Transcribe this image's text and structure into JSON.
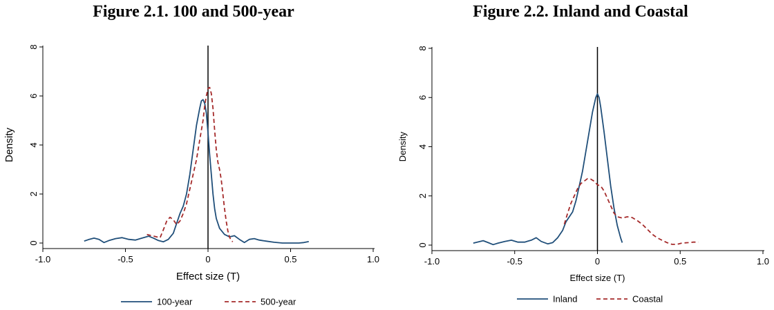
{
  "titles": {
    "left": "Figure 2.1. 100 and 500-year",
    "right": "Figure 2.2. Inland and Coastal"
  },
  "colors": {
    "solid_series": "#1f4e79",
    "dashed_series": "#a52a2a",
    "axis": "#000000",
    "zero_line": "#000000"
  },
  "chart_data": [
    {
      "type": "line",
      "title": "Figure 2.1. 100 and 500-year",
      "xlabel": "Effect size (T)",
      "ylabel": "Density",
      "xlim": [
        -1.0,
        1.0
      ],
      "ylim": [
        0,
        8
      ],
      "xticks": [
        -1.0,
        -0.5,
        0,
        0.5,
        1.0
      ],
      "xtick_labels": [
        "-1.0",
        "-0.5",
        "0",
        "0.5",
        "1.0"
      ],
      "yticks": [
        0,
        2,
        4,
        6,
        8
      ],
      "ytick_labels": [
        "0",
        "2",
        "4",
        "6",
        "8"
      ],
      "reference_line_x": 0,
      "legend_position": "bottom",
      "series": [
        {
          "name": "100-year",
          "style": "solid",
          "color": "#1f4e79",
          "points": [
            [
              -0.75,
              0.08
            ],
            [
              -0.72,
              0.15
            ],
            [
              -0.69,
              0.2
            ],
            [
              -0.66,
              0.15
            ],
            [
              -0.63,
              0.02
            ],
            [
              -0.6,
              0.1
            ],
            [
              -0.56,
              0.18
            ],
            [
              -0.52,
              0.22
            ],
            [
              -0.48,
              0.15
            ],
            [
              -0.44,
              0.12
            ],
            [
              -0.4,
              0.2
            ],
            [
              -0.36,
              0.28
            ],
            [
              -0.33,
              0.2
            ],
            [
              -0.3,
              0.1
            ],
            [
              -0.27,
              0.05
            ],
            [
              -0.24,
              0.15
            ],
            [
              -0.21,
              0.4
            ],
            [
              -0.19,
              0.8
            ],
            [
              -0.17,
              1.2
            ],
            [
              -0.15,
              1.5
            ],
            [
              -0.13,
              2.0
            ],
            [
              -0.11,
              2.8
            ],
            [
              -0.09,
              3.8
            ],
            [
              -0.07,
              4.8
            ],
            [
              -0.05,
              5.5
            ],
            [
              -0.04,
              5.8
            ],
            [
              -0.03,
              5.85
            ],
            [
              -0.02,
              5.7
            ],
            [
              -0.01,
              5.3
            ],
            [
              0.0,
              4.5
            ],
            [
              0.01,
              3.6
            ],
            [
              0.02,
              2.8
            ],
            [
              0.03,
              2.0
            ],
            [
              0.04,
              1.4
            ],
            [
              0.05,
              1.0
            ],
            [
              0.07,
              0.6
            ],
            [
              0.1,
              0.35
            ],
            [
              0.13,
              0.25
            ],
            [
              0.16,
              0.3
            ],
            [
              0.19,
              0.15
            ],
            [
              0.22,
              0.02
            ],
            [
              0.25,
              0.15
            ],
            [
              0.28,
              0.18
            ],
            [
              0.31,
              0.12
            ],
            [
              0.35,
              0.08
            ],
            [
              0.4,
              0.03
            ],
            [
              0.45,
              0.0
            ],
            [
              0.5,
              0.0
            ],
            [
              0.55,
              0.0
            ],
            [
              0.58,
              0.02
            ],
            [
              0.61,
              0.06
            ]
          ]
        },
        {
          "name": "500-year",
          "style": "dashed",
          "color": "#a52a2a",
          "points": [
            [
              -0.37,
              0.35
            ],
            [
              -0.34,
              0.3
            ],
            [
              -0.31,
              0.25
            ],
            [
              -0.29,
              0.22
            ],
            [
              -0.27,
              0.55
            ],
            [
              -0.25,
              0.9
            ],
            [
              -0.23,
              1.05
            ],
            [
              -0.21,
              0.95
            ],
            [
              -0.19,
              0.75
            ],
            [
              -0.17,
              0.9
            ],
            [
              -0.15,
              1.2
            ],
            [
              -0.13,
              1.6
            ],
            [
              -0.11,
              2.2
            ],
            [
              -0.09,
              2.8
            ],
            [
              -0.07,
              3.4
            ],
            [
              -0.05,
              4.2
            ],
            [
              -0.03,
              5.0
            ],
            [
              -0.02,
              5.6
            ],
            [
              -0.01,
              6.0
            ],
            [
              0.0,
              6.3
            ],
            [
              0.01,
              6.35
            ],
            [
              0.02,
              6.1
            ],
            [
              0.03,
              5.5
            ],
            [
              0.04,
              4.6
            ],
            [
              0.05,
              3.8
            ],
            [
              0.06,
              3.3
            ],
            [
              0.07,
              3.0
            ],
            [
              0.08,
              2.6
            ],
            [
              0.09,
              2.0
            ],
            [
              0.1,
              1.4
            ],
            [
              0.11,
              0.9
            ],
            [
              0.12,
              0.5
            ],
            [
              0.13,
              0.25
            ],
            [
              0.14,
              0.1
            ],
            [
              0.15,
              0.05
            ]
          ]
        }
      ]
    },
    {
      "type": "line",
      "title": "Figure 2.2. Inland and Coastal",
      "xlabel": "Effect size (T)",
      "ylabel": "Density",
      "xlim": [
        -1.0,
        1.0
      ],
      "ylim": [
        0,
        8
      ],
      "xticks": [
        -1.0,
        -0.5,
        0,
        0.5,
        1.0
      ],
      "xtick_labels": [
        "-1.0",
        "-0.5",
        "0",
        "0.5",
        "1.0"
      ],
      "yticks": [
        0,
        2,
        4,
        6,
        8
      ],
      "ytick_labels": [
        "0",
        "2",
        "4",
        "6",
        "8"
      ],
      "reference_line_x": 0,
      "legend_position": "bottom",
      "series": [
        {
          "name": "Inland",
          "style": "solid",
          "color": "#1f4e79",
          "points": [
            [
              -0.75,
              0.08
            ],
            [
              -0.72,
              0.13
            ],
            [
              -0.69,
              0.18
            ],
            [
              -0.66,
              0.1
            ],
            [
              -0.63,
              0.02
            ],
            [
              -0.6,
              0.08
            ],
            [
              -0.56,
              0.15
            ],
            [
              -0.52,
              0.2
            ],
            [
              -0.48,
              0.12
            ],
            [
              -0.44,
              0.12
            ],
            [
              -0.4,
              0.2
            ],
            [
              -0.37,
              0.3
            ],
            [
              -0.34,
              0.15
            ],
            [
              -0.3,
              0.05
            ],
            [
              -0.27,
              0.1
            ],
            [
              -0.24,
              0.3
            ],
            [
              -0.21,
              0.6
            ],
            [
              -0.19,
              0.95
            ],
            [
              -0.17,
              1.15
            ],
            [
              -0.15,
              1.35
            ],
            [
              -0.13,
              1.8
            ],
            [
              -0.11,
              2.4
            ],
            [
              -0.09,
              3.0
            ],
            [
              -0.07,
              3.8
            ],
            [
              -0.05,
              4.6
            ],
            [
              -0.03,
              5.4
            ],
            [
              -0.01,
              6.0
            ],
            [
              0.0,
              6.15
            ],
            [
              0.01,
              6.0
            ],
            [
              0.02,
              5.6
            ],
            [
              0.04,
              4.6
            ],
            [
              0.06,
              3.5
            ],
            [
              0.08,
              2.4
            ],
            [
              0.1,
              1.5
            ],
            [
              0.12,
              0.8
            ],
            [
              0.14,
              0.3
            ],
            [
              0.15,
              0.1
            ]
          ]
        },
        {
          "name": "Coastal",
          "style": "dashed",
          "color": "#a52a2a",
          "points": [
            [
              -0.2,
              0.85
            ],
            [
              -0.18,
              1.3
            ],
            [
              -0.16,
              1.7
            ],
            [
              -0.14,
              2.0
            ],
            [
              -0.12,
              2.3
            ],
            [
              -0.1,
              2.5
            ],
            [
              -0.08,
              2.6
            ],
            [
              -0.06,
              2.7
            ],
            [
              -0.04,
              2.68
            ],
            [
              -0.02,
              2.6
            ],
            [
              0.0,
              2.45
            ],
            [
              0.02,
              2.4
            ],
            [
              0.04,
              2.2
            ],
            [
              0.06,
              1.9
            ],
            [
              0.08,
              1.6
            ],
            [
              0.1,
              1.3
            ],
            [
              0.12,
              1.15
            ],
            [
              0.15,
              1.1
            ],
            [
              0.18,
              1.15
            ],
            [
              0.21,
              1.12
            ],
            [
              0.24,
              1.0
            ],
            [
              0.27,
              0.85
            ],
            [
              0.3,
              0.65
            ],
            [
              0.33,
              0.45
            ],
            [
              0.36,
              0.3
            ],
            [
              0.39,
              0.2
            ],
            [
              0.42,
              0.1
            ],
            [
              0.45,
              0.03
            ],
            [
              0.48,
              0.03
            ],
            [
              0.51,
              0.08
            ],
            [
              0.55,
              0.1
            ],
            [
              0.58,
              0.12
            ],
            [
              0.61,
              0.12
            ]
          ]
        }
      ]
    }
  ]
}
